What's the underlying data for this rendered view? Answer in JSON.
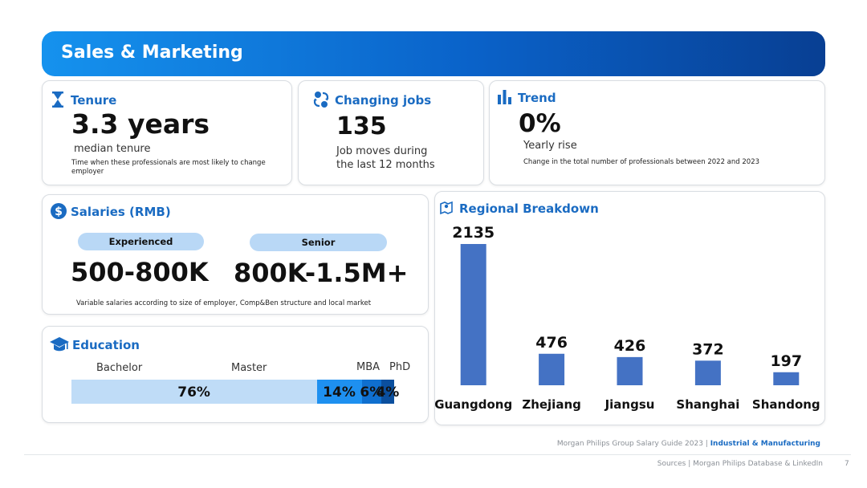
{
  "header": {
    "title": "Sales & Marketing"
  },
  "tenure": {
    "title": "Tenure",
    "value": "3.3 years",
    "subtitle": "median tenure",
    "note": "Time when these professionals are most likely to  change employer"
  },
  "changing_jobs": {
    "title": "Changing jobs",
    "value": "135",
    "line1": "Job moves during",
    "line2": "the last 12 months"
  },
  "trend": {
    "title": "Trend",
    "value": "0%",
    "subtitle": "Yearly rise",
    "note": "Change in the total number of professionals between 2022 and 2023"
  },
  "salaries": {
    "title": "Salaries (RMB)",
    "experienced_label": "Experienced",
    "experienced_value": "500-800K",
    "senior_label": "Senior",
    "senior_value": "800K-1.5M+",
    "note": "Variable salaries according to size of employer, Comp&Ben structure and local market"
  },
  "education": {
    "title": "Education",
    "segments": [
      {
        "label": "Bachelor",
        "value": "76%",
        "percent": 76,
        "color": "#bfdcf7"
      },
      {
        "label": "Master",
        "value": "14%",
        "percent": 14,
        "color": "#1e90f0"
      },
      {
        "label": "MBA",
        "value": "6%",
        "percent": 6,
        "color": "#0f6fcf"
      },
      {
        "label": "PhD",
        "value": "4%",
        "percent": 4,
        "color": "#0b4f9e"
      }
    ]
  },
  "regional": {
    "title": "Regional Breakdown"
  },
  "chart_data": {
    "type": "bar",
    "title": "Regional Breakdown",
    "categories": [
      "Guangdong",
      "Zhejiang",
      "Jiangsu",
      "Shanghai",
      "Shandong"
    ],
    "values": [
      2135,
      476,
      426,
      372,
      197
    ],
    "data_labels": [
      "2135",
      "476",
      "426",
      "372",
      "197"
    ],
    "bar_color": "#4472c4",
    "grid": false
  },
  "footer": {
    "guide": "Morgan Philips Group Salary Guide 2023 | ",
    "sector": "Industrial & Manufacturing",
    "sources": "Sources | Morgan Philips Database & LinkedIn",
    "page": "7"
  }
}
